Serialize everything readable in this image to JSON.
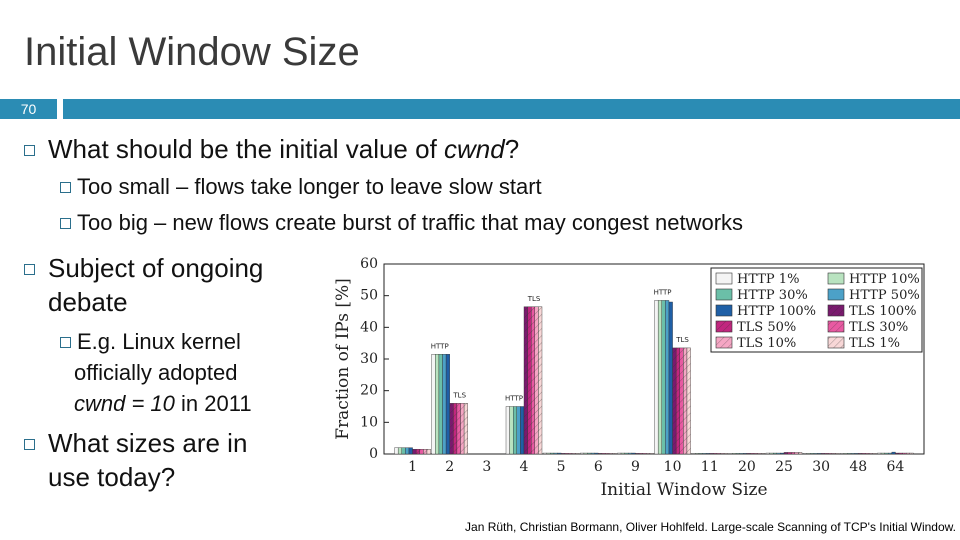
{
  "slide": {
    "title": "Initial Window Size",
    "number": "70",
    "bullets": {
      "b1": {
        "prefix": "What should be the initial value of ",
        "emph": "cwnd",
        "suffix": "?"
      },
      "b1_sub1": "Too small – flows take longer to leave slow start",
      "b1_sub2": "Too big – new flows create burst of traffic that may congest networks",
      "b2_line1": "Subject of ongoing",
      "b2_line2": "debate",
      "b2_sub_line1": "E.g. Linux kernel",
      "b2_sub_line2": "officially adopted",
      "b2_sub_line3_emph": "cwnd = 10",
      "b2_sub_line3_rest": " in 2011",
      "b3_line1": "What sizes are in",
      "b3_line2": "use today?"
    },
    "citation": "Jan Rüth, Christian Bormann, Oliver Hohlfeld. Large-scale Scanning of TCP's Initial Window."
  },
  "colors": {
    "accent": "#2b8cb4",
    "bullet": "#2b6f8c"
  },
  "chart_data": {
    "type": "bar",
    "xlabel": "Initial Window Size",
    "ylabel": "Fraction of IPs [%]",
    "ylim": [
      0,
      60
    ],
    "yticks": [
      0,
      10,
      20,
      30,
      40,
      50,
      60
    ],
    "categories": [
      "1",
      "2",
      "3",
      "4",
      "5",
      "6",
      "9",
      "10",
      "11",
      "20",
      "25",
      "30",
      "48",
      "64"
    ],
    "legend_position": "top-right",
    "series": [
      {
        "name": "HTTP 1%",
        "color": "#f4f4f4",
        "values": [
          2,
          31.5,
          0,
          15,
          0.3,
          0.3,
          0.3,
          48.5,
          0.2,
          0.2,
          0.3,
          0.2,
          0.2,
          0.3
        ]
      },
      {
        "name": "HTTP 10%",
        "color": "#b9e3c0",
        "values": [
          2,
          31.5,
          0,
          15,
          0.3,
          0.3,
          0.3,
          48.5,
          0.2,
          0.2,
          0.3,
          0.2,
          0.2,
          0.3
        ]
      },
      {
        "name": "HTTP 30%",
        "color": "#6bbfa8",
        "values": [
          2,
          31.5,
          0,
          15,
          0.3,
          0.3,
          0.3,
          48.5,
          0.2,
          0.2,
          0.3,
          0.2,
          0.2,
          0.3
        ]
      },
      {
        "name": "HTTP 50%",
        "color": "#4ca1c8",
        "values": [
          2,
          31.5,
          0,
          15,
          0.3,
          0.3,
          0.3,
          48.5,
          0.2,
          0.2,
          0.3,
          0.2,
          0.2,
          0.3
        ]
      },
      {
        "name": "HTTP 100%",
        "color": "#1f5fa6",
        "values": [
          2,
          31.5,
          0,
          15,
          0.3,
          0.3,
          0.3,
          48,
          0.2,
          0.2,
          0.3,
          0.2,
          0.2,
          0.6
        ]
      },
      {
        "name": "TLS 100%",
        "color": "#7a1a6e",
        "values": [
          1.5,
          16,
          0,
          46.5,
          0.2,
          0.2,
          0.2,
          33.5,
          0.2,
          0.2,
          0.5,
          0.2,
          0.2,
          0.3
        ]
      },
      {
        "name": "TLS 50%",
        "color": "#c2267f",
        "values": [
          1.5,
          16,
          0,
          46.5,
          0.2,
          0.2,
          0.2,
          33.5,
          0.2,
          0.2,
          0.5,
          0.2,
          0.2,
          0.3
        ]
      },
      {
        "name": "TLS 30%",
        "color": "#e85aa2",
        "values": [
          1.5,
          16,
          0,
          46.5,
          0.2,
          0.2,
          0.2,
          33.5,
          0.2,
          0.2,
          0.5,
          0.2,
          0.2,
          0.3
        ]
      },
      {
        "name": "TLS 10%",
        "color": "#f5a6c4",
        "values": [
          1.5,
          16,
          0,
          46.5,
          0.2,
          0.2,
          0.2,
          33.5,
          0.2,
          0.2,
          0.5,
          0.2,
          0.2,
          0.3
        ]
      },
      {
        "name": "TLS 1%",
        "color": "#f8d7d7",
        "values": [
          1.5,
          16,
          0,
          46.5,
          0.2,
          0.2,
          0.2,
          33.5,
          0.2,
          0.2,
          0.5,
          0.2,
          0.2,
          0.3
        ]
      }
    ],
    "annotations": [
      {
        "text": "HTTP",
        "category": "2",
        "value": 31.5
      },
      {
        "text": "TLS",
        "category": "2",
        "value": 16
      },
      {
        "text": "HTTP",
        "category": "4",
        "value": 15
      },
      {
        "text": "TLS",
        "category": "4",
        "value": 46.5
      },
      {
        "text": "HTTP",
        "category": "10",
        "value": 48.5
      },
      {
        "text": "TLS",
        "category": "10",
        "value": 33.5
      }
    ]
  }
}
